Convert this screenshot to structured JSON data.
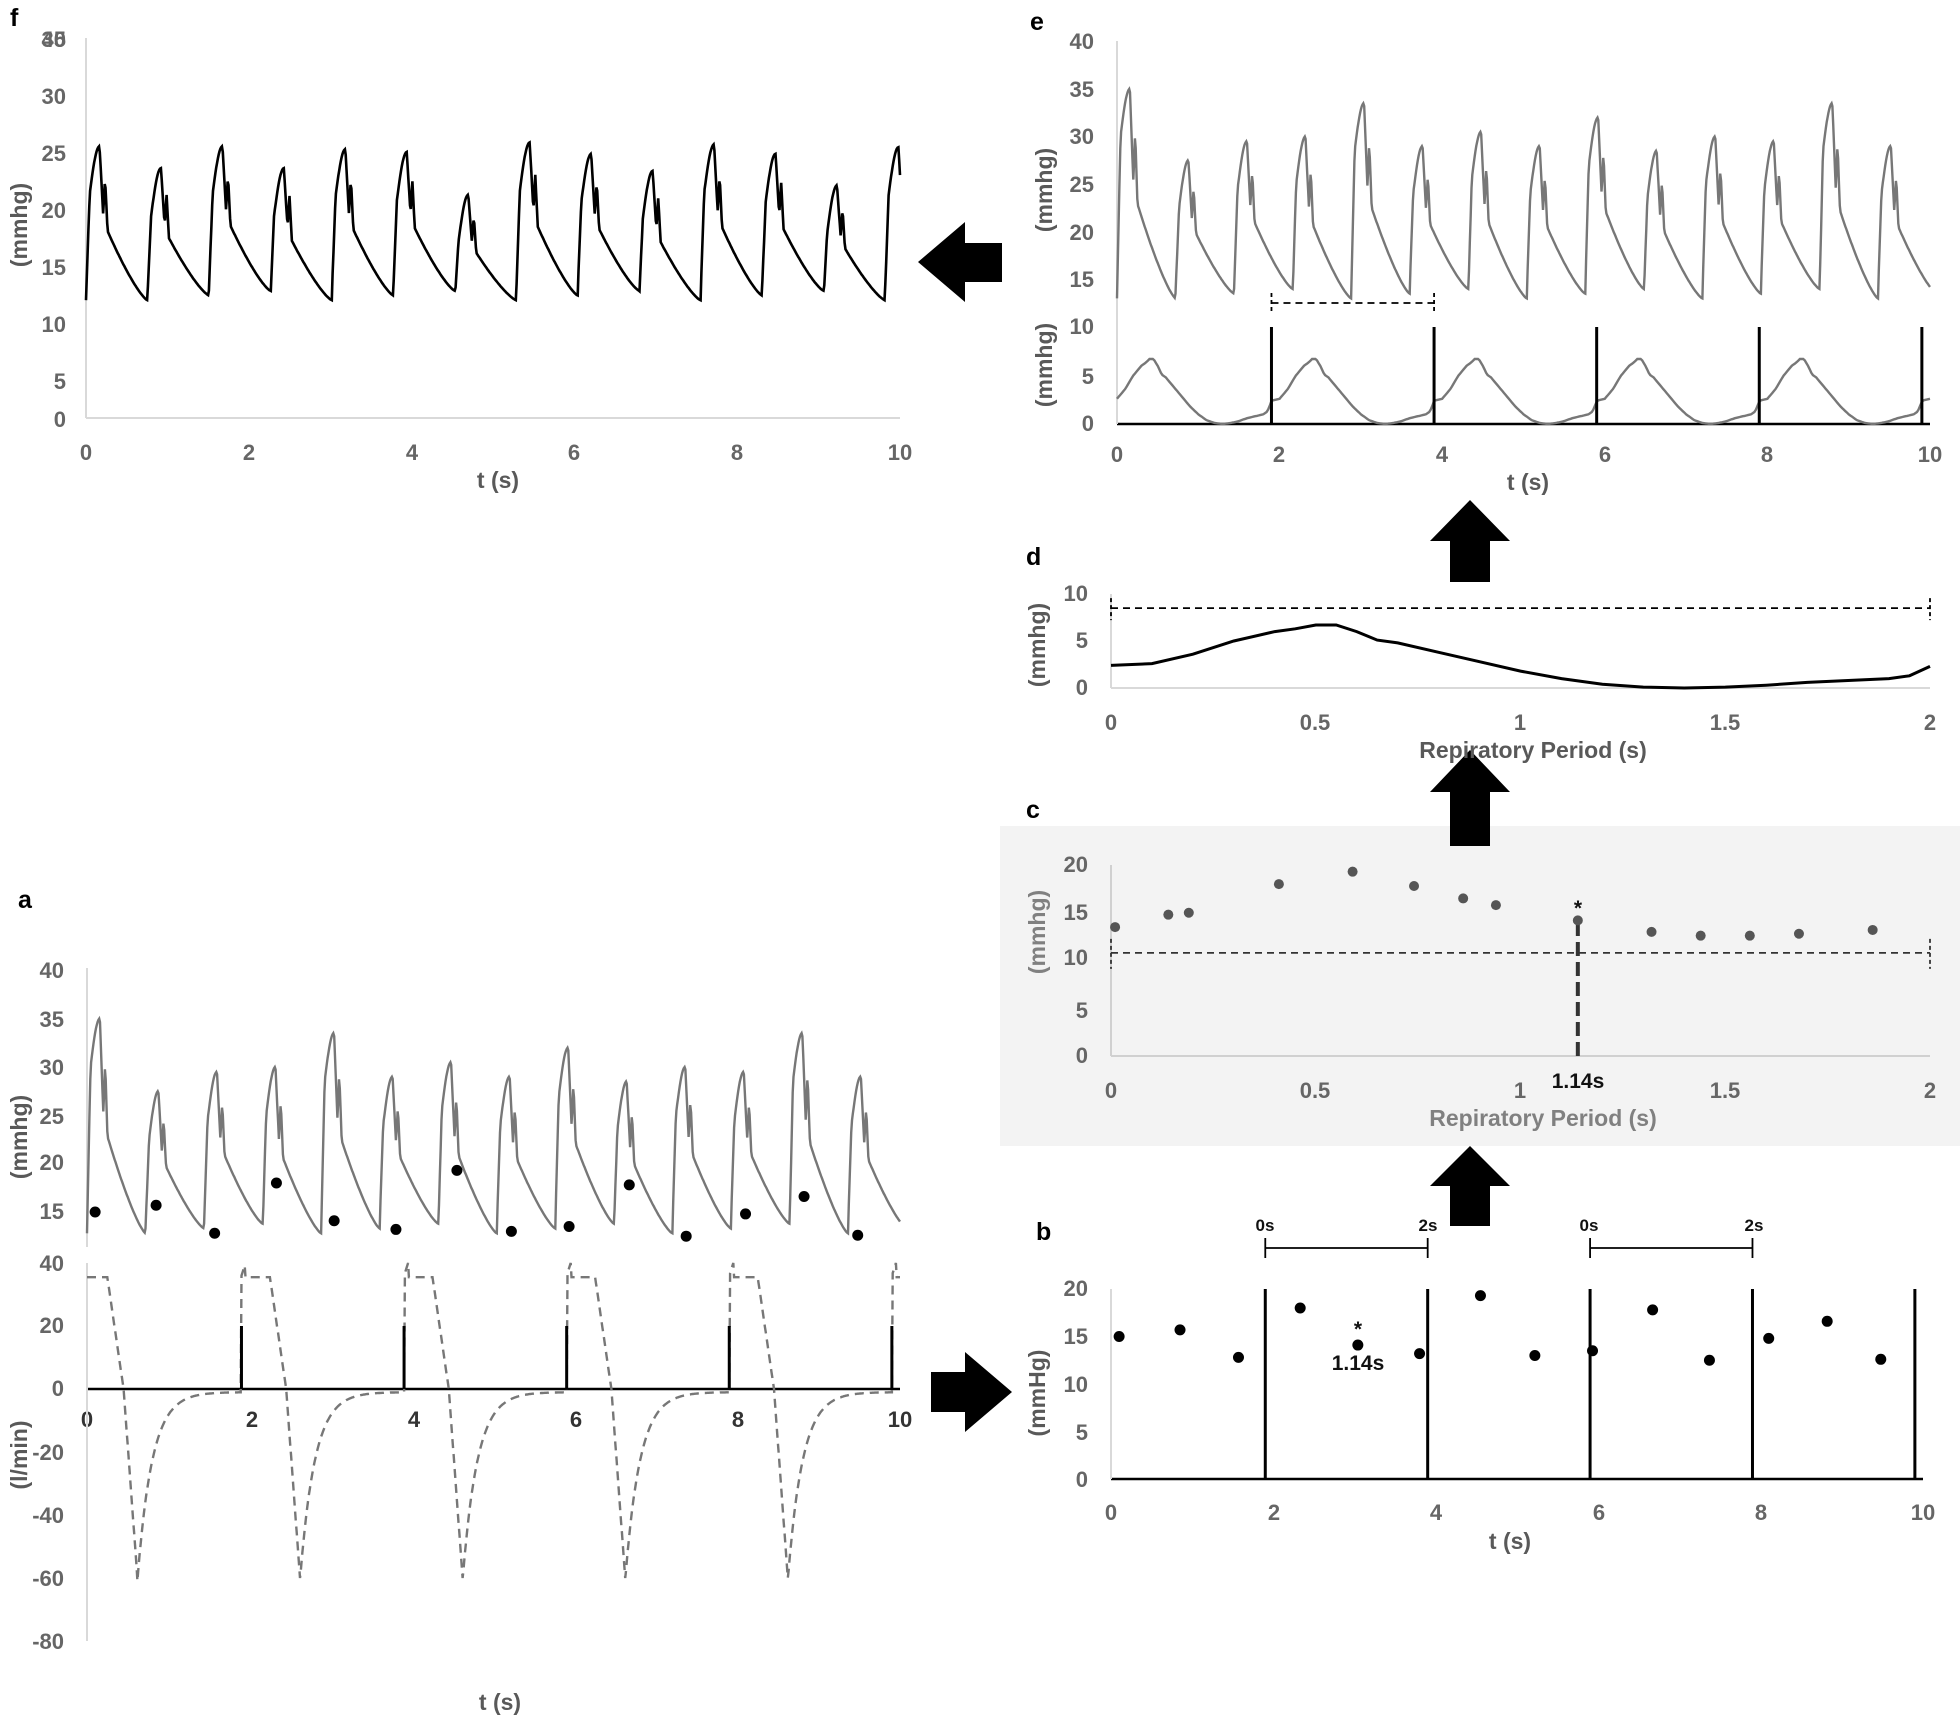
{
  "chart_data": [
    {
      "id": "f",
      "panel_label": "f",
      "type": "line",
      "title": "",
      "xlabel": "t (s)",
      "ylabel": "(mmhg)",
      "xlim": [
        0,
        10
      ],
      "ylim": [
        0,
        40
      ],
      "x_ticks": [
        "0",
        "2",
        "4",
        "6",
        "8",
        "10"
      ],
      "y_ticks": [
        "0",
        "5",
        "10",
        "15",
        "20",
        "25",
        "30",
        "35",
        "40"
      ],
      "series": [
        {
          "name": "",
          "color": "#000000",
          "period": 0.9,
          "shape": "pulse",
          "peaks": [
            28.6,
            26.3,
            28.6,
            26.3,
            28.3,
            28.0,
            23.5,
            29.0,
            27.8,
            26.0,
            28.8,
            27.8,
            24.5,
            28.5
          ]
        }
      ]
    },
    {
      "id": "e",
      "panel_label": "e",
      "type": "line",
      "title": "",
      "xlabel": "t (s)",
      "ylabel_top": "(mmhg)",
      "ylabel_bottom": "(mmhg)",
      "xlim": [
        0,
        10
      ],
      "ylim_top": [
        10,
        40
      ],
      "ylim_bottom": [
        0,
        10
      ],
      "x_ticks": [
        "0",
        "2",
        "4",
        "6",
        "8",
        "10"
      ],
      "y_ticks_top": [
        "10",
        "15",
        "20",
        "25",
        "30",
        "35",
        "40"
      ],
      "y_ticks_bottom": [
        "0",
        "5",
        "10"
      ],
      "series": [
        {
          "name": "",
          "color": "#777777",
          "shape": "pulse",
          "period": 0.72,
          "peaks": [
            35.0,
            27.5,
            29.5,
            30.0,
            33.5,
            29.0,
            30.5,
            29.0,
            32.0,
            28.5,
            30.0,
            29.5,
            33.5,
            29.0
          ]
        },
        {
          "name": "",
          "color": "#777777",
          "shape": "resp_template",
          "period": 2.0
        },
        {
          "name": "",
          "color": "#000000",
          "shape": "markers",
          "x": [
            1.9,
            3.9,
            5.9,
            7.9,
            9.9
          ],
          "height": 10
        }
      ],
      "period_bracket": [
        1.9,
        3.9
      ]
    },
    {
      "id": "d",
      "panel_label": "d",
      "type": "line",
      "title": "",
      "xlabel": "Repiratory Period (s)",
      "ylabel": "(mmhg)",
      "xlim": [
        0,
        2
      ],
      "ylim": [
        0,
        10
      ],
      "x_ticks": [
        "0",
        "0.5",
        "1",
        "1.5",
        "2"
      ],
      "y_ticks": [
        "0",
        "5",
        "10"
      ],
      "series": [
        {
          "name": "",
          "color": "#000000",
          "x": [
            0,
            0.1,
            0.2,
            0.3,
            0.4,
            0.45,
            0.5,
            0.55,
            0.6,
            0.65,
            0.7,
            0.8,
            0.9,
            1.0,
            1.1,
            1.2,
            1.3,
            1.4,
            1.5,
            1.6,
            1.7,
            1.8,
            1.9,
            1.95,
            2.0
          ],
          "y": [
            2.4,
            2.6,
            3.6,
            5.0,
            6.0,
            6.3,
            6.7,
            6.7,
            6.0,
            5.1,
            4.8,
            3.8,
            2.8,
            1.8,
            1.0,
            0.4,
            0.1,
            0.0,
            0.1,
            0.3,
            0.6,
            0.8,
            1.0,
            1.3,
            2.3
          ]
        }
      ],
      "threshold": 8.5
    },
    {
      "id": "c",
      "panel_label": "c",
      "type": "scatter",
      "title": "",
      "xlabel": "Repiratory Period (s)",
      "ylabel": "(mmhg)",
      "xlim": [
        0,
        2
      ],
      "ylim": [
        0,
        20
      ],
      "x_ticks": [
        "0",
        "0.5",
        "1",
        "1.5",
        "2"
      ],
      "y_ticks": [
        "0",
        "5",
        "10",
        "15",
        "20"
      ],
      "series": [
        {
          "name": "",
          "color": "#555555",
          "x": [
            0.01,
            0.14,
            0.19,
            0.41,
            0.59,
            0.74,
            0.86,
            0.94,
            1.14,
            1.32,
            1.44,
            1.56,
            1.68,
            1.86
          ],
          "y": [
            13.5,
            14.8,
            15.0,
            18.0,
            19.3,
            17.8,
            16.5,
            15.8,
            14.2,
            13.0,
            12.6,
            12.6,
            12.8,
            13.2
          ]
        }
      ],
      "threshold": 10.8,
      "marker_x": 1.14,
      "marker_label": "1.14s",
      "star": "*"
    },
    {
      "id": "b",
      "panel_label": "b",
      "type": "scatter",
      "title": "",
      "xlabel": "t (s)",
      "ylabel": "(mmHg)",
      "xlim": [
        0,
        10
      ],
      "ylim": [
        0,
        20
      ],
      "x_ticks": [
        "0",
        "2",
        "4",
        "6",
        "8",
        "10"
      ],
      "y_ticks": [
        "0",
        "5",
        "10",
        "15",
        "20"
      ],
      "series": [
        {
          "name": "",
          "color": "#000000",
          "x": [
            0.1,
            0.85,
            1.57,
            2.33,
            3.04,
            3.8,
            4.55,
            5.22,
            5.93,
            6.67,
            7.37,
            8.1,
            8.82,
            9.48
          ],
          "y": [
            15.0,
            15.7,
            12.8,
            18.0,
            14.1,
            13.2,
            19.3,
            13.0,
            13.5,
            17.8,
            12.5,
            14.8,
            16.6,
            12.6
          ]
        },
        {
          "name": "",
          "color": "#000000",
          "shape": "markers",
          "x": [
            1.9,
            3.9,
            5.9,
            7.9,
            9.9
          ],
          "height": 20
        }
      ],
      "bracket_labels": [
        "0s",
        "2s"
      ],
      "brackets": [
        [
          1.9,
          3.9
        ],
        [
          5.9,
          7.9
        ]
      ],
      "annotation": "1.14s",
      "star": "*"
    },
    {
      "id": "a_top",
      "panel_label": "a",
      "type": "line",
      "title": "",
      "xlabel": "",
      "ylabel": "(mmhg)",
      "xlim": [
        0,
        10
      ],
      "ylim": [
        14,
        40
      ],
      "y_ticks": [
        "15",
        "20",
        "25",
        "30",
        "35",
        "40"
      ],
      "series": [
        {
          "name": "",
          "color": "#777777",
          "shape": "pulse",
          "period": 0.72,
          "peaks": [
            35.0,
            27.5,
            29.5,
            30.0,
            33.5,
            29.0,
            30.5,
            29.0,
            32.0,
            28.5,
            30.0,
            29.5,
            33.5,
            29.0
          ]
        },
        {
          "name": "",
          "color": "#000000",
          "shape": "minima",
          "x": [
            0.1,
            0.85,
            1.57,
            2.33,
            3.04,
            3.8,
            4.55,
            5.22,
            5.93,
            6.67,
            7.37,
            8.1,
            8.82,
            9.48
          ],
          "y": [
            15.0,
            15.7,
            12.8,
            18.0,
            14.1,
            13.2,
            19.3,
            13.0,
            13.5,
            17.8,
            12.5,
            14.8,
            16.6,
            12.6
          ]
        }
      ]
    },
    {
      "id": "a_bottom",
      "panel_label": "",
      "type": "line",
      "title": "",
      "xlabel": "t (s)",
      "ylabel": "(l/min)",
      "xlim": [
        0,
        10
      ],
      "ylim": [
        -80,
        40
      ],
      "x_ticks": [
        "0",
        "2",
        "4",
        "6",
        "8",
        "10"
      ],
      "y_ticks": [
        "-80",
        "-60",
        "-40",
        "-20",
        "0",
        "20",
        "40"
      ],
      "series": [
        {
          "name": "",
          "color": "#777777",
          "shape": "flow_dashed",
          "period": 2.0,
          "phase": 1.9
        },
        {
          "name": "",
          "color": "#000000",
          "shape": "markers",
          "x": [
            1.9,
            3.9,
            5.9,
            7.9,
            9.9
          ],
          "height": 20
        }
      ]
    }
  ]
}
